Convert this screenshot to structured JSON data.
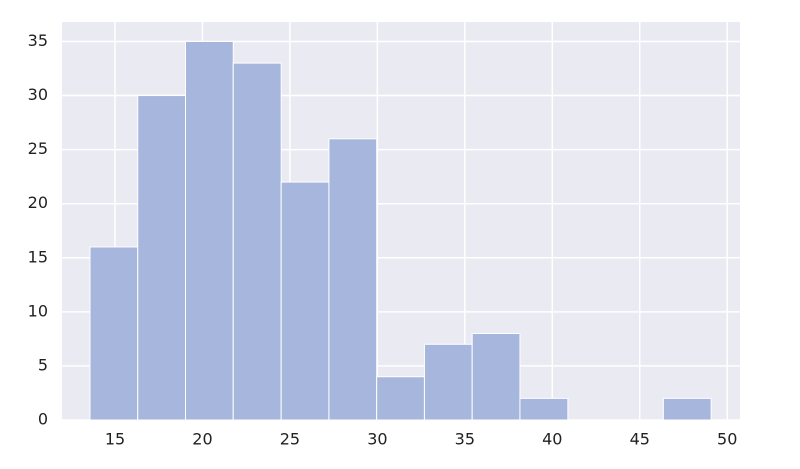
{
  "chart_data": {
    "type": "histogram",
    "bins": [
      13.57,
      16.3,
      19.03,
      21.76,
      24.5,
      27.23,
      29.96,
      32.69,
      35.42,
      38.15,
      40.89,
      43.62,
      46.35,
      49.08
    ],
    "values": [
      16,
      30,
      35,
      33,
      22,
      26,
      4,
      7,
      8,
      2,
      0,
      0,
      2
    ],
    "color": "#a6b6dc",
    "xlim": [
      11.97,
      50.73
    ],
    "xticks": [
      15,
      20,
      25,
      30,
      35,
      40,
      45,
      50
    ],
    "ylim": [
      0,
      36.8
    ],
    "yticks": [
      0,
      5,
      10,
      15,
      20,
      25,
      30,
      35
    ],
    "grid": true
  }
}
